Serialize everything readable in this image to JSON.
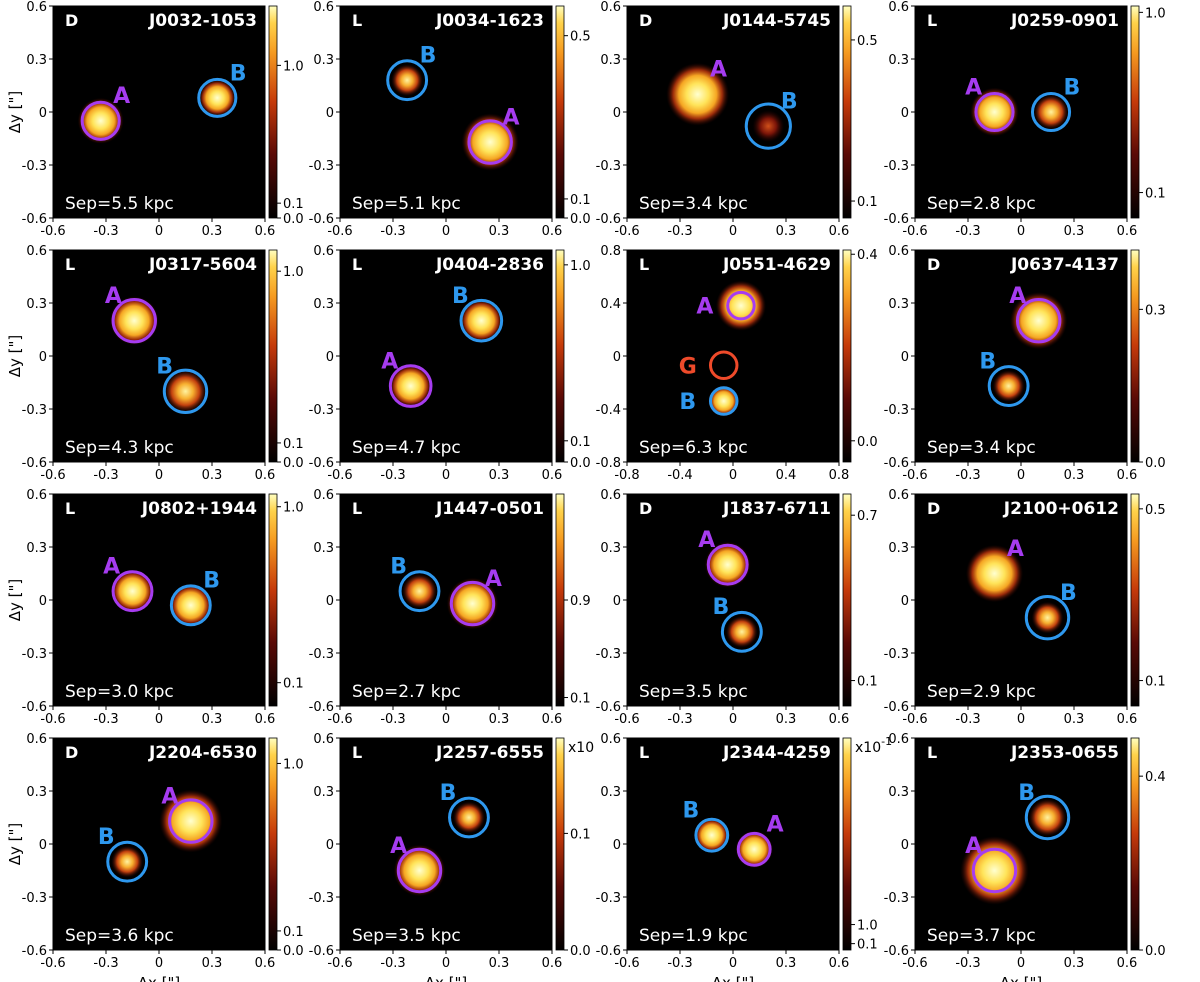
{
  "figure": {
    "xlabel": "Δx [\"]",
    "ylabel": "Δy [\"]",
    "colormap": "afmhot",
    "colors": {
      "A_circle": "#a63cf0",
      "B_circle": "#2e98ee",
      "G_circle": "#ee4a2a",
      "panel_text": "#ffffff"
    }
  },
  "chart_data": [
    {
      "type": "heatmap",
      "title": "J0032-1053",
      "tag": "D",
      "sep": "Sep=5.5 kpc",
      "xlim": [
        -0.6,
        0.6
      ],
      "ylim": [
        -0.6,
        0.6
      ],
      "xticks": [
        "-0.6",
        "-0.3",
        "0",
        "0.3",
        "0.6"
      ],
      "yticks": [
        "0.6",
        "0.3",
        "0",
        "-0.3",
        "-0.6"
      ],
      "cbar_ticks": [
        {
          "label": "1.0",
          "frac": 0.72
        },
        {
          "label": "0.1",
          "frac": 0.07
        },
        {
          "label": "0.0",
          "frac": 0.0
        }
      ],
      "cbar_exp": "",
      "sources": [
        {
          "label": "A",
          "x": -0.33,
          "y": -0.05,
          "r": 0.105,
          "peak": 1.0,
          "core": 0.06,
          "labelpos": "tr"
        },
        {
          "label": "B",
          "x": 0.33,
          "y": 0.08,
          "r": 0.105,
          "peak": 0.95,
          "core": 0.045,
          "labelpos": "tr"
        }
      ]
    },
    {
      "type": "heatmap",
      "title": "J0034-1623",
      "tag": "L",
      "sep": "Sep=5.1 kpc",
      "xlim": [
        -0.6,
        0.6
      ],
      "ylim": [
        -0.6,
        0.6
      ],
      "xticks": [
        "-0.6",
        "-0.3",
        "0",
        "0.3",
        "0.6"
      ],
      "yticks": [
        "0.6",
        "0.3",
        "0",
        "-0.3",
        "-0.6"
      ],
      "cbar_ticks": [
        {
          "label": "0.5",
          "frac": 0.86
        },
        {
          "label": "0.1",
          "frac": 0.09
        },
        {
          "label": "0.0",
          "frac": 0.0
        }
      ],
      "cbar_exp": "",
      "sources": [
        {
          "label": "A",
          "x": 0.25,
          "y": -0.17,
          "r": 0.12,
          "peak": 1.0,
          "core": 0.08,
          "labelpos": "tr"
        },
        {
          "label": "B",
          "x": -0.22,
          "y": 0.18,
          "r": 0.11,
          "peak": 0.7,
          "core": 0.035,
          "labelpos": "tr"
        }
      ]
    },
    {
      "type": "heatmap",
      "title": "J0144-5745",
      "tag": "D",
      "sep": "Sep=3.4 kpc",
      "xlim": [
        -0.6,
        0.6
      ],
      "ylim": [
        -0.6,
        0.6
      ],
      "xticks": [
        "-0.6",
        "-0.3",
        "0",
        "0.3",
        "0.6"
      ],
      "yticks": [
        "0.6",
        "0.3",
        "0",
        "-0.3",
        "-0.6"
      ],
      "cbar_ticks": [
        {
          "label": "0.5",
          "frac": 0.84
        },
        {
          "label": "0.1",
          "frac": 0.08
        }
      ],
      "cbar_exp": "",
      "sources": [
        {
          "label": "A",
          "x": -0.2,
          "y": 0.1,
          "r": 0.0,
          "peak": 1.0,
          "core": 0.09,
          "labelpos": "tr"
        },
        {
          "label": "B",
          "x": 0.2,
          "y": -0.08,
          "r": 0.125,
          "peak": 0.35,
          "core": 0.035,
          "labelpos": "tr"
        }
      ]
    },
    {
      "type": "heatmap",
      "title": "J0259-0901",
      "tag": "L",
      "sep": "Sep=2.8 kpc",
      "xlim": [
        -0.6,
        0.6
      ],
      "ylim": [
        -0.6,
        0.6
      ],
      "xticks": [
        "-0.6",
        "-0.3",
        "0",
        "0.3",
        "0.6"
      ],
      "yticks": [
        "0.6",
        "0.3",
        "0",
        "-0.3",
        "-0.6"
      ],
      "cbar_ticks": [
        {
          "label": "1.0",
          "frac": 0.97
        },
        {
          "label": "0.1",
          "frac": 0.12
        }
      ],
      "cbar_exp": "",
      "sources": [
        {
          "label": "A",
          "x": -0.15,
          "y": 0.0,
          "r": 0.105,
          "peak": 1.0,
          "core": 0.065,
          "labelpos": "tl"
        },
        {
          "label": "B",
          "x": 0.17,
          "y": 0.0,
          "r": 0.105,
          "peak": 0.8,
          "core": 0.04,
          "labelpos": "tr"
        }
      ]
    },
    {
      "type": "heatmap",
      "title": "J0317-5604",
      "tag": "L",
      "sep": "Sep=4.3 kpc",
      "xlim": [
        -0.6,
        0.6
      ],
      "ylim": [
        -0.6,
        0.6
      ],
      "xticks": [
        "-0.6",
        "-0.3",
        "0",
        "0.3",
        "0.6"
      ],
      "yticks": [
        "0.6",
        "0.3",
        "0",
        "-0.3",
        "-0.6"
      ],
      "cbar_ticks": [
        {
          "label": "1.0",
          "frac": 0.9
        },
        {
          "label": "0.1",
          "frac": 0.09
        },
        {
          "label": "0.0",
          "frac": 0.0
        }
      ],
      "cbar_exp": "",
      "sources": [
        {
          "label": "A",
          "x": -0.14,
          "y": 0.2,
          "r": 0.12,
          "peak": 1.0,
          "core": 0.065,
          "labelpos": "tl"
        },
        {
          "label": "B",
          "x": 0.15,
          "y": -0.2,
          "r": 0.12,
          "peak": 0.9,
          "core": 0.055,
          "labelpos": "tl"
        }
      ]
    },
    {
      "type": "heatmap",
      "title": "J0404-2836",
      "tag": "L",
      "sep": "Sep=4.7 kpc",
      "xlim": [
        -0.6,
        0.6
      ],
      "ylim": [
        -0.6,
        0.6
      ],
      "xticks": [
        "-0.6",
        "-0.3",
        "0",
        "0.3",
        "0.6"
      ],
      "yticks": [
        "0.6",
        "0.3",
        "0",
        "-0.3",
        "-0.6"
      ],
      "cbar_ticks": [
        {
          "label": "1.0",
          "frac": 0.93
        },
        {
          "label": "0.1",
          "frac": 0.1
        },
        {
          "label": "0.0",
          "frac": 0.0
        }
      ],
      "cbar_exp": "",
      "sources": [
        {
          "label": "A",
          "x": -0.2,
          "y": -0.17,
          "r": 0.115,
          "peak": 1.0,
          "core": 0.055,
          "labelpos": "tl"
        },
        {
          "label": "B",
          "x": 0.2,
          "y": 0.2,
          "r": 0.115,
          "peak": 1.0,
          "core": 0.055,
          "labelpos": "tl"
        }
      ]
    },
    {
      "type": "heatmap",
      "title": "J0551-4629",
      "tag": "L",
      "sep": "Sep=6.3 kpc",
      "xlim": [
        -0.8,
        0.8
      ],
      "ylim": [
        -0.8,
        0.8
      ],
      "xticks": [
        "-0.8",
        "-0.4",
        "0",
        "0.4",
        "0.8"
      ],
      "yticks": [
        "0.8",
        "0.4",
        "0",
        "-0.4",
        "-0.8"
      ],
      "cbar_ticks": [
        {
          "label": "0.4",
          "frac": 0.98
        },
        {
          "label": "0.0",
          "frac": 0.1
        }
      ],
      "cbar_exp": "",
      "sources": [
        {
          "label": "A",
          "x": 0.06,
          "y": 0.38,
          "r": 0.1,
          "peak": 1.0,
          "core": 0.09,
          "labelpos": "l"
        },
        {
          "label": "G",
          "x": -0.07,
          "y": -0.07,
          "r": 0.1,
          "peak": 0.0,
          "core": 0.0,
          "labelpos": "l"
        },
        {
          "label": "B",
          "x": -0.07,
          "y": -0.34,
          "r": 0.1,
          "peak": 0.95,
          "core": 0.045,
          "labelpos": "l"
        }
      ]
    },
    {
      "type": "heatmap",
      "title": "J0637-4137",
      "tag": "D",
      "sep": "Sep=3.4 kpc",
      "xlim": [
        -0.6,
        0.6
      ],
      "ylim": [
        -0.6,
        0.6
      ],
      "xticks": [
        "-0.6",
        "-0.3",
        "0",
        "0.3",
        "0.6"
      ],
      "yticks": [
        "0.6",
        "0.3",
        "0",
        "-0.3",
        "-0.6"
      ],
      "cbar_ticks": [
        {
          "label": "0.3",
          "frac": 0.72
        },
        {
          "label": "0.0",
          "frac": 0.0
        }
      ],
      "cbar_exp": "",
      "sources": [
        {
          "label": "A",
          "x": 0.1,
          "y": 0.2,
          "r": 0.12,
          "peak": 1.0,
          "core": 0.08,
          "labelpos": "tl"
        },
        {
          "label": "B",
          "x": -0.07,
          "y": -0.17,
          "r": 0.11,
          "peak": 0.8,
          "core": 0.035,
          "labelpos": "tl"
        }
      ]
    },
    {
      "type": "heatmap",
      "title": "J0802+1944",
      "tag": "L",
      "sep": "Sep=3.0 kpc",
      "xlim": [
        -0.6,
        0.6
      ],
      "ylim": [
        -0.6,
        0.6
      ],
      "xticks": [
        "-0.6",
        "-0.3",
        "0",
        "0.3",
        "0.6"
      ],
      "yticks": [
        "0.6",
        "0.3",
        "0",
        "-0.3",
        "-0.6"
      ],
      "cbar_ticks": [
        {
          "label": "1.0",
          "frac": 0.94
        },
        {
          "label": "0.1",
          "frac": 0.11
        }
      ],
      "cbar_exp": "",
      "sources": [
        {
          "label": "A",
          "x": -0.15,
          "y": 0.05,
          "r": 0.11,
          "peak": 1.0,
          "core": 0.055,
          "labelpos": "tl"
        },
        {
          "label": "B",
          "x": 0.18,
          "y": -0.03,
          "r": 0.11,
          "peak": 0.95,
          "core": 0.055,
          "labelpos": "tr"
        }
      ]
    },
    {
      "type": "heatmap",
      "title": "J1447-0501",
      "tag": "L",
      "sep": "Sep=2.7 kpc",
      "xlim": [
        -0.6,
        0.6
      ],
      "ylim": [
        -0.6,
        0.6
      ],
      "xticks": [
        "-0.6",
        "-0.3",
        "0",
        "0.3",
        "0.6"
      ],
      "yticks": [
        "0.6",
        "0.3",
        "0",
        "-0.3",
        "-0.6"
      ],
      "cbar_ticks": [
        {
          "label": "0.9",
          "frac": 0.5
        },
        {
          "label": "0.1",
          "frac": 0.04
        }
      ],
      "cbar_exp": "",
      "sources": [
        {
          "label": "A",
          "x": 0.15,
          "y": -0.02,
          "r": 0.12,
          "peak": 1.0,
          "core": 0.07,
          "labelpos": "tr"
        },
        {
          "label": "B",
          "x": -0.15,
          "y": 0.05,
          "r": 0.11,
          "peak": 0.85,
          "core": 0.04,
          "labelpos": "tl"
        }
      ]
    },
    {
      "type": "heatmap",
      "title": "J1837-6711",
      "tag": "D",
      "sep": "Sep=3.5 kpc",
      "xlim": [
        -0.6,
        0.6
      ],
      "ylim": [
        -0.6,
        0.6
      ],
      "xticks": [
        "-0.6",
        "-0.3",
        "0",
        "0.3",
        "0.6"
      ],
      "yticks": [
        "0.6",
        "0.3",
        "0",
        "-0.3",
        "-0.6"
      ],
      "cbar_ticks": [
        {
          "label": "0.7",
          "frac": 0.9
        },
        {
          "label": "0.1",
          "frac": 0.12
        }
      ],
      "cbar_exp": "",
      "sources": [
        {
          "label": "A",
          "x": -0.03,
          "y": 0.2,
          "r": 0.11,
          "peak": 1.0,
          "core": 0.06,
          "labelpos": "tl"
        },
        {
          "label": "B",
          "x": 0.05,
          "y": -0.18,
          "r": 0.11,
          "peak": 0.8,
          "core": 0.035,
          "labelpos": "tl"
        }
      ]
    },
    {
      "type": "heatmap",
      "title": "J2100+0612",
      "tag": "D",
      "sep": "Sep=2.9 kpc",
      "xlim": [
        -0.6,
        0.6
      ],
      "ylim": [
        -0.6,
        0.6
      ],
      "xticks": [
        "-0.6",
        "-0.3",
        "0",
        "0.3",
        "0.6"
      ],
      "yticks": [
        "0.6",
        "0.3",
        "0",
        "-0.3",
        "-0.6"
      ],
      "cbar_ticks": [
        {
          "label": "0.5",
          "frac": 0.93
        },
        {
          "label": "0.1",
          "frac": 0.12
        }
      ],
      "cbar_exp": "",
      "sources": [
        {
          "label": "A",
          "x": -0.15,
          "y": 0.15,
          "r": 0.0,
          "peak": 1.0,
          "core": 0.08,
          "labelpos": "tr"
        },
        {
          "label": "B",
          "x": 0.15,
          "y": -0.1,
          "r": 0.12,
          "peak": 0.6,
          "core": 0.035,
          "labelpos": "tr"
        }
      ]
    },
    {
      "type": "heatmap",
      "title": "J2204-6530",
      "tag": "D",
      "sep": "Sep=3.6 kpc",
      "xlim": [
        -0.6,
        0.6
      ],
      "ylim": [
        -0.6,
        0.6
      ],
      "xticks": [
        "-0.6",
        "-0.3",
        "0",
        "0.3",
        "0.6"
      ],
      "yticks": [
        "0.6",
        "0.3",
        "0",
        "-0.3",
        "-0.6"
      ],
      "cbar_ticks": [
        {
          "label": "1.0",
          "frac": 0.88
        },
        {
          "label": "0.1",
          "frac": 0.09
        },
        {
          "label": "0.0",
          "frac": 0.0
        }
      ],
      "cbar_exp": "",
      "sources": [
        {
          "label": "A",
          "x": 0.18,
          "y": 0.13,
          "r": 0.12,
          "peak": 1.0,
          "core": 0.09,
          "labelpos": "tl"
        },
        {
          "label": "B",
          "x": -0.18,
          "y": -0.1,
          "r": 0.11,
          "peak": 0.7,
          "core": 0.035,
          "labelpos": "tl"
        }
      ]
    },
    {
      "type": "heatmap",
      "title": "J2257-6555",
      "tag": "L",
      "sep": "Sep=3.5 kpc",
      "xlim": [
        -0.6,
        0.6
      ],
      "ylim": [
        -0.6,
        0.6
      ],
      "xticks": [
        "-0.6",
        "-0.3",
        "0",
        "0.3",
        "0.6"
      ],
      "yticks": [
        "0.6",
        "0.3",
        "0",
        "-0.3",
        "-0.6"
      ],
      "cbar_ticks": [
        {
          "label": "0.1",
          "frac": 0.55
        },
        {
          "label": "0.0",
          "frac": 0.0
        }
      ],
      "cbar_exp": "x10",
      "sources": [
        {
          "label": "A",
          "x": -0.15,
          "y": -0.15,
          "r": 0.12,
          "peak": 1.0,
          "core": 0.07,
          "labelpos": "tl"
        },
        {
          "label": "B",
          "x": 0.13,
          "y": 0.15,
          "r": 0.11,
          "peak": 0.75,
          "core": 0.035,
          "labelpos": "tl"
        }
      ]
    },
    {
      "type": "heatmap",
      "title": "J2344-4259",
      "tag": "L",
      "sep": "Sep=1.9 kpc",
      "xlim": [
        -0.6,
        0.6
      ],
      "ylim": [
        -0.6,
        0.6
      ],
      "xticks": [
        "-0.6",
        "-0.3",
        "0",
        "0.3",
        "0.6"
      ],
      "yticks": [
        "0.6",
        "0.3",
        "0",
        "-0.3",
        "-0.6"
      ],
      "cbar_ticks": [
        {
          "label": "1.0",
          "frac": 0.12
        },
        {
          "label": "0.1",
          "frac": 0.03
        }
      ],
      "cbar_exp": "x10-1",
      "sources": [
        {
          "label": "A",
          "x": 0.12,
          "y": -0.03,
          "r": 0.09,
          "peak": 1.0,
          "core": 0.045,
          "labelpos": "tr"
        },
        {
          "label": "B",
          "x": -0.12,
          "y": 0.05,
          "r": 0.09,
          "peak": 0.95,
          "core": 0.04,
          "labelpos": "tl"
        }
      ]
    },
    {
      "type": "heatmap",
      "title": "J2353-0655",
      "tag": "L",
      "sep": "Sep=3.7 kpc",
      "xlim": [
        -0.6,
        0.6
      ],
      "ylim": [
        -0.6,
        0.6
      ],
      "xticks": [
        "-0.6",
        "-0.3",
        "0",
        "0.3",
        "0.6"
      ],
      "yticks": [
        "0.6",
        "0.3",
        "0",
        "-0.3",
        "-0.6"
      ],
      "cbar_ticks": [
        {
          "label": "0.4",
          "frac": 0.82
        },
        {
          "label": "0.0",
          "frac": 0.0
        }
      ],
      "cbar_exp": "",
      "sources": [
        {
          "label": "A",
          "x": -0.15,
          "y": -0.15,
          "r": 0.12,
          "peak": 1.0,
          "core": 0.1,
          "labelpos": "tl"
        },
        {
          "label": "B",
          "x": 0.15,
          "y": 0.15,
          "r": 0.12,
          "peak": 0.85,
          "core": 0.045,
          "labelpos": "tl"
        }
      ]
    }
  ]
}
